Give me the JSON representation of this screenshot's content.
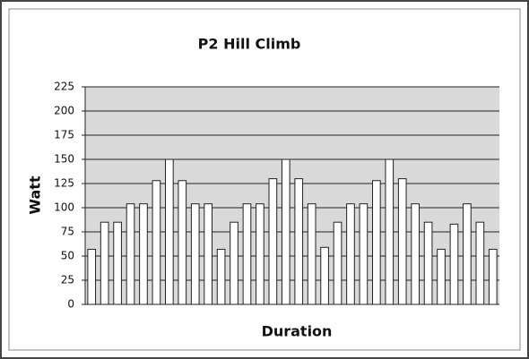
{
  "chart_data": {
    "type": "bar",
    "title": "P2 Hill Climb",
    "x_label": "Duration",
    "y_label": "Watt",
    "categories": [
      null,
      null,
      null,
      null,
      null,
      null,
      null,
      null,
      null,
      null,
      null,
      null,
      null,
      null,
      null,
      null,
      null,
      null,
      null,
      null,
      null,
      null,
      null,
      null,
      null,
      null,
      null,
      null,
      null,
      null,
      null,
      null
    ],
    "values": [
      57,
      85,
      85,
      104,
      104,
      128,
      150,
      128,
      104,
      104,
      57,
      85,
      104,
      104,
      130,
      150,
      130,
      104,
      59,
      85,
      104,
      104,
      128,
      150,
      130,
      104,
      85,
      57,
      83,
      104,
      85,
      57
    ],
    "color": "#ffffff",
    "ylim": [
      0,
      225
    ],
    "yticks": [
      0,
      25,
      50,
      75,
      100,
      125,
      150,
      175,
      200,
      225
    ],
    "grid": true
  }
}
